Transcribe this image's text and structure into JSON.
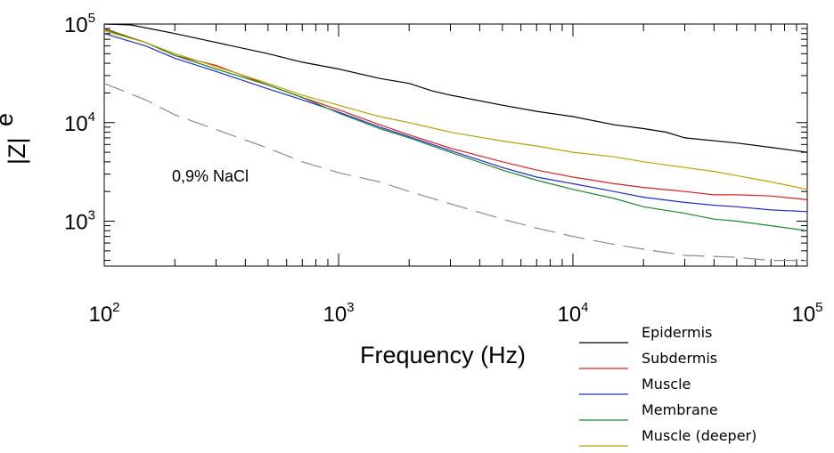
{
  "chart_data": {
    "type": "line",
    "xlabel": "Frequency (Hz)",
    "ylabel": "|Z|",
    "ylabel_partial": "e",
    "x_scale": "log",
    "y_scale": "log",
    "xlim": [
      100,
      100000
    ],
    "ylim": [
      350,
      100000
    ],
    "grid": false,
    "legend_position": "bottom-right",
    "x_ticks": [
      {
        "value": 100,
        "base": "10",
        "exp": "2"
      },
      {
        "value": 1000,
        "base": "10",
        "exp": "3"
      },
      {
        "value": 10000,
        "base": "10",
        "exp": "4"
      },
      {
        "value": 100000,
        "base": "10",
        "exp": "5"
      }
    ],
    "y_ticks": [
      {
        "value": 1000,
        "base": "10",
        "exp": "3"
      },
      {
        "value": 10000,
        "base": "10",
        "exp": "4"
      },
      {
        "value": 100000,
        "base": "10",
        "exp": "5"
      }
    ],
    "annotations": [
      {
        "text": "0,9% NaCl",
        "x": 250,
        "y": 2000
      }
    ],
    "series": [
      {
        "name": "Epidermis",
        "color": "#000000",
        "dash": "solid",
        "x": [
          100,
          130,
          200,
          300,
          500,
          700,
          1000,
          1500,
          2000,
          2500,
          3000,
          5000,
          7000,
          10000,
          15000,
          20000,
          25000,
          30000,
          50000,
          70000,
          100000
        ],
        "y": [
          100000,
          98000,
          80000,
          65000,
          50000,
          41000,
          35000,
          28000,
          25000,
          21000,
          19000,
          15000,
          13000,
          11500,
          9500,
          8700,
          8000,
          7000,
          6200,
          5600,
          5000
        ]
      },
      {
        "name": "Subdermis",
        "color": "#e02020",
        "dash": "solid",
        "x": [
          100,
          150,
          200,
          300,
          500,
          700,
          1000,
          1500,
          2000,
          3000,
          5000,
          7000,
          10000,
          15000,
          20000,
          30000,
          40000,
          50000,
          70000,
          100000
        ],
        "y": [
          90000,
          65000,
          48000,
          38000,
          24000,
          18000,
          13500,
          9500,
          7500,
          5500,
          4000,
          3300,
          2800,
          2400,
          2200,
          2000,
          1850,
          1850,
          1800,
          1650
        ]
      },
      {
        "name": "Muscle",
        "color": "#1f2ad8",
        "dash": "solid",
        "x": [
          100,
          150,
          200,
          300,
          500,
          700,
          1000,
          1500,
          2000,
          3000,
          5000,
          7000,
          10000,
          15000,
          20000,
          30000,
          40000,
          50000,
          70000,
          100000
        ],
        "y": [
          80000,
          60000,
          45000,
          33000,
          22000,
          17000,
          12800,
          9000,
          7200,
          5200,
          3500,
          2800,
          2400,
          2000,
          1750,
          1550,
          1450,
          1400,
          1300,
          1250
        ]
      },
      {
        "name": "Membrane",
        "color": "#1a8a28",
        "dash": "solid",
        "x": [
          100,
          150,
          200,
          300,
          500,
          700,
          1000,
          1500,
          2000,
          3000,
          5000,
          7000,
          10000,
          15000,
          20000,
          30000,
          40000,
          50000,
          70000,
          100000
        ],
        "y": [
          88000,
          65000,
          48000,
          35000,
          24000,
          18000,
          12500,
          8700,
          7000,
          5000,
          3300,
          2600,
          2100,
          1700,
          1400,
          1200,
          1050,
          1000,
          900,
          800
        ]
      },
      {
        "name": "Muscle (deeper)",
        "color": "#b8a400",
        "dash": "solid",
        "x": [
          100,
          150,
          200,
          300,
          500,
          700,
          1000,
          1500,
          2000,
          3000,
          5000,
          7000,
          10000,
          15000,
          20000,
          30000,
          40000,
          50000,
          70000,
          100000
        ],
        "y": [
          85000,
          65000,
          50000,
          37000,
          25000,
          19000,
          15000,
          11500,
          10000,
          8000,
          6500,
          5800,
          5000,
          4500,
          4000,
          3500,
          3200,
          2900,
          2500,
          2100
        ]
      },
      {
        "name": "0,9% NaCl",
        "color": "#8a8a8a",
        "dash": "dashed",
        "legend": false,
        "x": [
          100,
          150,
          200,
          300,
          500,
          700,
          1000,
          1500,
          2000,
          3000,
          5000,
          7000,
          10000,
          15000,
          20000,
          30000,
          50000,
          70000,
          100000
        ],
        "y": [
          25000,
          17000,
          12000,
          8500,
          5500,
          4000,
          3100,
          2500,
          2000,
          1500,
          1050,
          850,
          700,
          580,
          520,
          450,
          430,
          400,
          400
        ]
      }
    ]
  }
}
